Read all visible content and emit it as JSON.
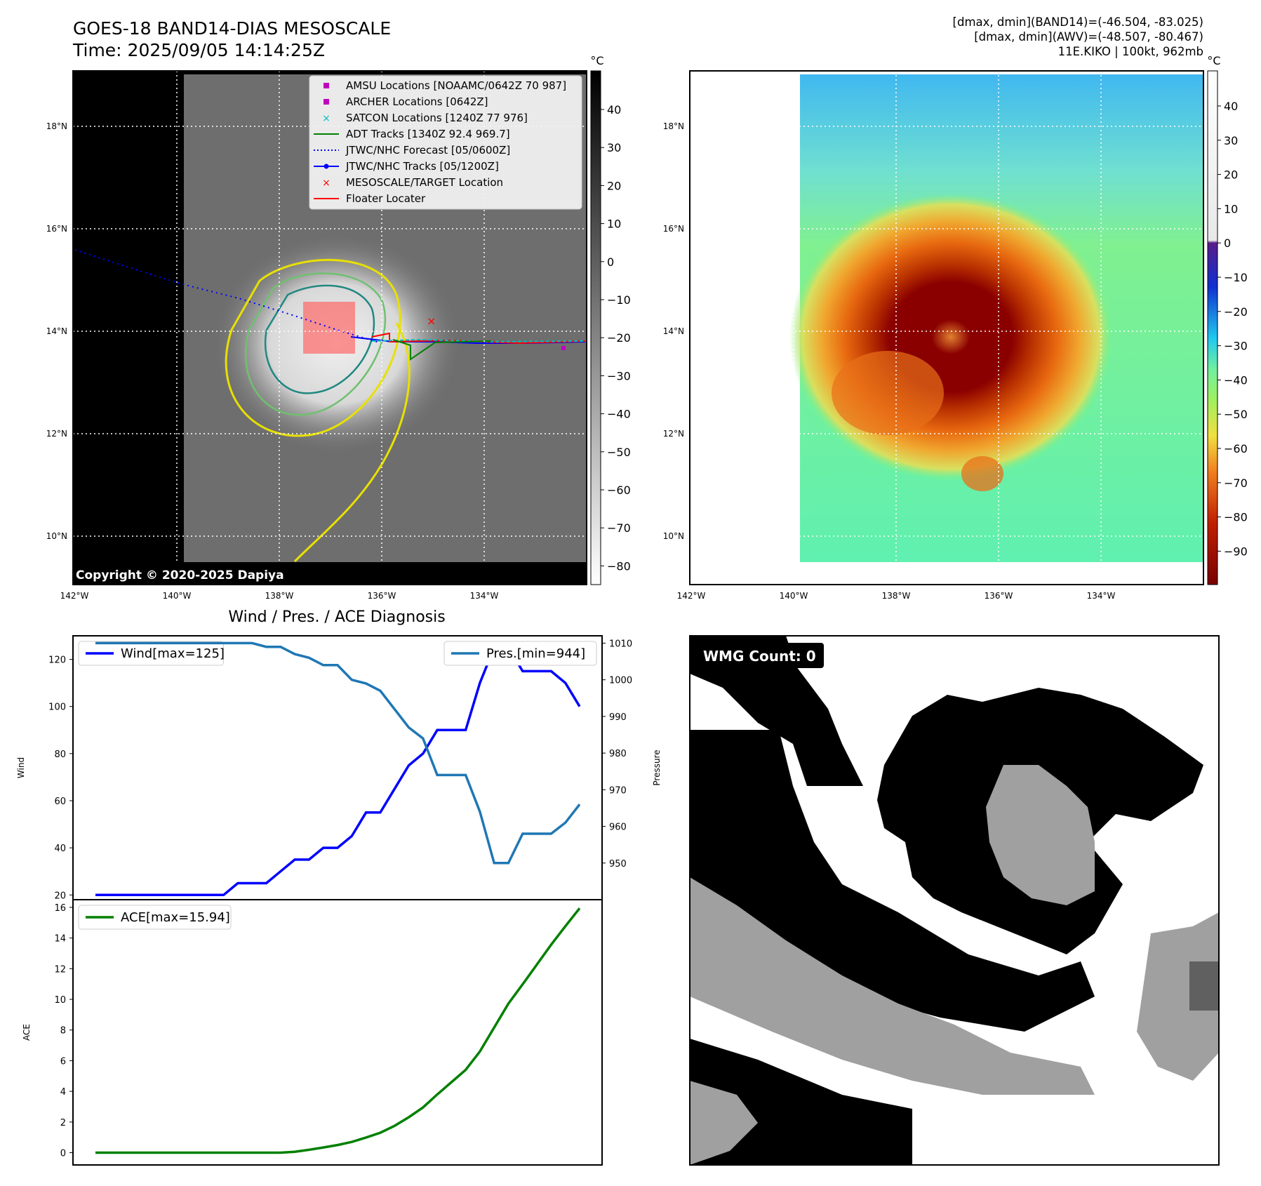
{
  "header": {
    "title": "GOES-18 BAND14-DIAS MESOSCALE",
    "time": "Time: 2025/09/05 14:14:25Z",
    "stats_band14": "[dmax, dmin](BAND14)=(-46.504, -83.025)",
    "stats_awv": "[dmax, dmin](AWV)=(-48.507, -80.467)",
    "storm_info": "11E.KIKO | 100kt, 962mb"
  },
  "ir_panel": {
    "lat_ticks": [
      "18°N",
      "16°N",
      "14°N",
      "12°N",
      "10°N"
    ],
    "lon_ticks": [
      "142°W",
      "140°W",
      "138°W",
      "136°W",
      "134°W"
    ],
    "colorbar_unit": "°C",
    "colorbar_ticks": [
      "40",
      "30",
      "20",
      "10",
      "0",
      "−10",
      "−20",
      "−30",
      "−40",
      "−50",
      "−60",
      "−70",
      "−80"
    ],
    "copyright": "Copyright © 2020-2025 Dapiya",
    "legend": [
      {
        "label": "AMSU Locations [NOAAMC/0642Z 70 987]",
        "marker": "square",
        "color": "#c000c0"
      },
      {
        "label": "ARCHER Locations [0642Z]",
        "marker": "square",
        "color": "#c000c0"
      },
      {
        "label": "SATCON Locations [1240Z 77 976]",
        "marker": "x",
        "color": "#00bfbf"
      },
      {
        "label": "ADT Tracks [1340Z 92.4 969.7]",
        "marker": "line",
        "color": "#008000"
      },
      {
        "label": "JTWC/NHC Forecast [05/0600Z]",
        "marker": "dotted",
        "color": "#0000ff"
      },
      {
        "label": "JTWC/NHC Tracks [05/1200Z]",
        "marker": "line-dot",
        "color": "#0000ff"
      },
      {
        "label": "MESOSCALE/TARGET Location",
        "marker": "x",
        "color": "#ff0000"
      },
      {
        "label": "Floater Locater",
        "marker": "line",
        "color": "#ff0000"
      }
    ]
  },
  "awv_panel": {
    "lat_ticks": [
      "18°N",
      "16°N",
      "14°N",
      "12°N",
      "10°N"
    ],
    "lon_ticks": [
      "142°W",
      "140°W",
      "138°W",
      "136°W",
      "134°W"
    ],
    "colorbar_unit": "°C",
    "colorbar_ticks": [
      "40",
      "30",
      "20",
      "10",
      "0",
      "−10",
      "−20",
      "−30",
      "−40",
      "−50",
      "−60",
      "−70",
      "−80",
      "−90"
    ]
  },
  "wmg_panel": {
    "label": "WMG Count: 0"
  },
  "chart_data": [
    {
      "type": "line",
      "title": "Wind / Pres. / ACE Diagnosis",
      "ylabel": "Wind",
      "y2label": "Pressure",
      "ylim": [
        18,
        130
      ],
      "y2lim": [
        940,
        1012
      ],
      "yticks": [
        20,
        40,
        60,
        80,
        100,
        120
      ],
      "y2ticks": [
        950,
        960,
        970,
        980,
        990,
        1000,
        1010
      ],
      "series": [
        {
          "name": "Wind[max=125]",
          "color": "#0000ff",
          "axis": "left",
          "values": [
            20,
            20,
            20,
            20,
            20,
            20,
            20,
            20,
            20,
            20,
            25,
            25,
            25,
            30,
            35,
            35,
            40,
            40,
            45,
            55,
            55,
            65,
            75,
            80,
            90,
            90,
            90,
            110,
            125,
            125,
            115,
            115,
            115,
            110,
            100
          ]
        },
        {
          "name": "Pres.[min=944]",
          "color": "#1f77b4",
          "axis": "right",
          "values": [
            1010,
            1010,
            1010,
            1010,
            1010,
            1010,
            1010,
            1010,
            1010,
            1010,
            1010,
            1010,
            1009,
            1009,
            1007,
            1006,
            1004,
            1004,
            1000,
            999,
            997,
            992,
            987,
            984,
            974,
            974,
            974,
            964,
            950,
            950,
            958,
            958,
            958,
            961,
            966
          ]
        }
      ]
    },
    {
      "type": "line",
      "ylabel": "ACE",
      "ylim": [
        -0.8,
        16.5
      ],
      "yticks": [
        0,
        2,
        4,
        6,
        8,
        10,
        12,
        14,
        16
      ],
      "series": [
        {
          "name": "ACE[max=15.94]",
          "color": "#008000",
          "values": [
            0,
            0,
            0,
            0,
            0,
            0,
            0,
            0,
            0,
            0,
            0,
            0,
            0,
            0,
            0.06,
            0.19,
            0.34,
            0.5,
            0.7,
            0.99,
            1.3,
            1.75,
            2.31,
            2.95,
            3.8,
            4.6,
            5.4,
            6.6,
            8.16,
            9.72,
            10.98,
            12.27,
            13.56,
            14.77,
            15.94
          ]
        }
      ]
    }
  ]
}
